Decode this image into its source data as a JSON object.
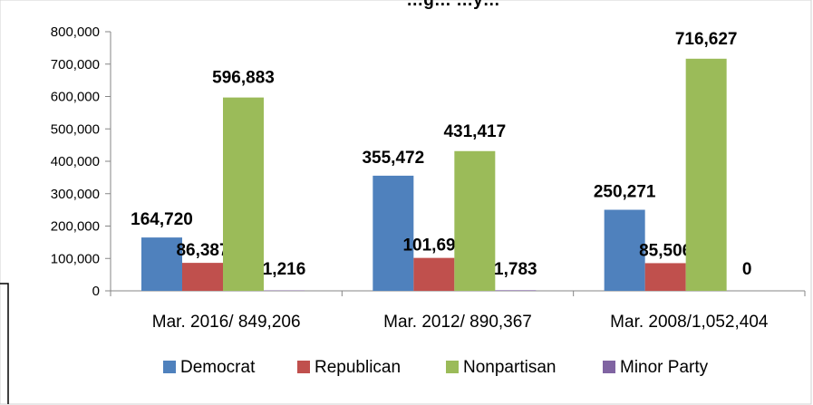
{
  "chart_data": {
    "type": "bar",
    "title": "…g… …y…",
    "categories": [
      "Mar. 2016/ 849,206",
      "Mar. 2012/ 890,367",
      "Mar. 2008/1,052,404"
    ],
    "series": [
      {
        "name": "Democrat",
        "color": "#4F81BD",
        "values": [
          164720,
          355472,
          250271
        ],
        "labels": [
          "164,720",
          "355,472",
          "250,271"
        ]
      },
      {
        "name": "Republican",
        "color": "#C0504D",
        "values": [
          86387,
          101695,
          85506
        ],
        "labels": [
          "86,387",
          "101,695",
          "85,506"
        ]
      },
      {
        "name": "Nonpartisan",
        "color": "#9BBB59",
        "values": [
          596883,
          431417,
          716627
        ],
        "labels": [
          "596,883",
          "431,417",
          "716,627"
        ]
      },
      {
        "name": "Minor Party",
        "color": "#8064A2",
        "values": [
          1216,
          1783,
          0
        ],
        "labels": [
          "1,216",
          "1,783",
          "0"
        ]
      }
    ],
    "ylim": [
      0,
      800000
    ],
    "yticks": [
      0,
      100000,
      200000,
      300000,
      400000,
      500000,
      600000,
      700000,
      800000
    ],
    "ytick_labels": [
      "0",
      "100,000",
      "200,000",
      "300,000",
      "400,000",
      "500,000",
      "600,000",
      "700,000",
      "800,000"
    ],
    "grid": false,
    "legend_position": "bottom",
    "xlabel": "",
    "ylabel": ""
  }
}
